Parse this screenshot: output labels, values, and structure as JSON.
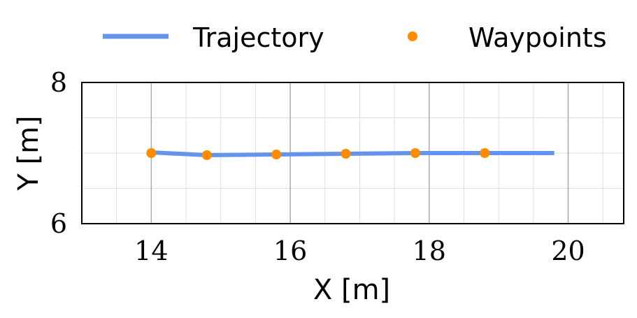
{
  "chart_data": {
    "type": "line",
    "xlabel": "X [m]",
    "ylabel": "Y [m]",
    "xlim": [
      13.0,
      20.8
    ],
    "ylim": [
      6.0,
      8.0
    ],
    "xticks": [
      14,
      16,
      18,
      20
    ],
    "xtick_labels": [
      "14",
      "16",
      "18",
      "20"
    ],
    "yticks": [
      6,
      8
    ],
    "ytick_labels": [
      "6",
      "8"
    ],
    "minor_xstep": 0.5,
    "minor_ystep": 0.5,
    "grid": true,
    "legend_position": "top, outside plot",
    "series": [
      {
        "name": "Trajectory",
        "kind": "line",
        "color": "#6495ED",
        "x": [
          14.0,
          14.8,
          15.8,
          16.8,
          17.8,
          18.8,
          19.8
        ],
        "y": [
          7.01,
          6.97,
          6.98,
          6.99,
          7.0,
          7.0,
          7.0
        ]
      },
      {
        "name": "Waypoints",
        "kind": "scatter",
        "color": "#FF8C00",
        "x": [
          14.0,
          14.8,
          15.8,
          16.8,
          17.8,
          18.8
        ],
        "y": [
          7.0,
          6.97,
          6.98,
          6.99,
          7.0,
          7.0
        ]
      }
    ]
  }
}
